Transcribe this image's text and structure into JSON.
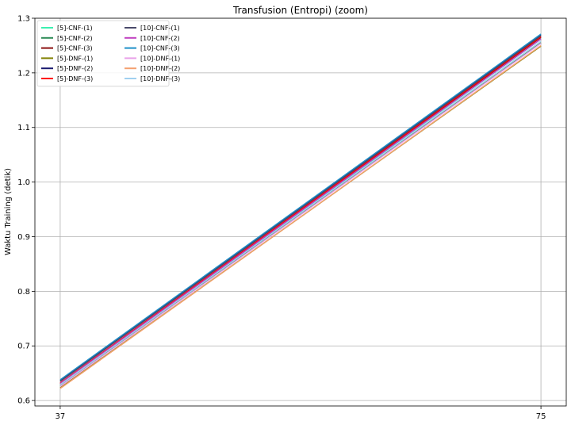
{
  "chart_data": {
    "type": "line",
    "title": "Transfusion (Entropi) (zoom)",
    "xlabel": "",
    "ylabel": "Waktu Training (detik)",
    "x": [
      37,
      75
    ],
    "x_ticks": [
      "37",
      "75"
    ],
    "ylim": [
      0.59,
      1.3
    ],
    "xlim": [
      35,
      77
    ],
    "y_ticks": [
      "0.6",
      "0.7",
      "0.8",
      "0.9",
      "1.0",
      "1.1",
      "1.2",
      "1.3"
    ],
    "grid": true,
    "legend_position": "top-left",
    "legend_columns": 2,
    "series": [
      {
        "name": "[5]-CNF-(1)",
        "color": "#3cf0b0",
        "values": [
          0.628,
          1.262
        ]
      },
      {
        "name": "[5]-CNF-(2)",
        "color": "#2e8b57",
        "values": [
          0.627,
          1.255
        ]
      },
      {
        "name": "[5]-CNF-(3)",
        "color": "#8b1010",
        "values": [
          0.63,
          1.265
        ]
      },
      {
        "name": "[5]-DNF-(1)",
        "color": "#808000",
        "values": [
          0.623,
          1.249
        ]
      },
      {
        "name": "[5]-DNF-(2)",
        "color": "#191970",
        "values": [
          0.636,
          1.27
        ]
      },
      {
        "name": "[5]-DNF-(3)",
        "color": "#ff0000",
        "values": [
          0.632,
          1.266
        ]
      },
      {
        "name": "[10]-CNF-(1)",
        "color": "#4a4a6a",
        "values": [
          0.635,
          1.268
        ]
      },
      {
        "name": "[10]-CNF-(2)",
        "color": "#c040c0",
        "values": [
          0.631,
          1.262
        ]
      },
      {
        "name": "[10]-CNF-(3)",
        "color": "#1e90c8",
        "values": [
          0.638,
          1.271
        ]
      },
      {
        "name": "[10]-DNF-(1)",
        "color": "#e8a0e8",
        "values": [
          0.626,
          1.254
        ]
      },
      {
        "name": "[10]-DNF-(2)",
        "color": "#f4a070",
        "values": [
          0.622,
          1.25
        ]
      },
      {
        "name": "[10]-DNF-(3)",
        "color": "#a0d0f0",
        "values": [
          0.629,
          1.258
        ]
      }
    ]
  }
}
